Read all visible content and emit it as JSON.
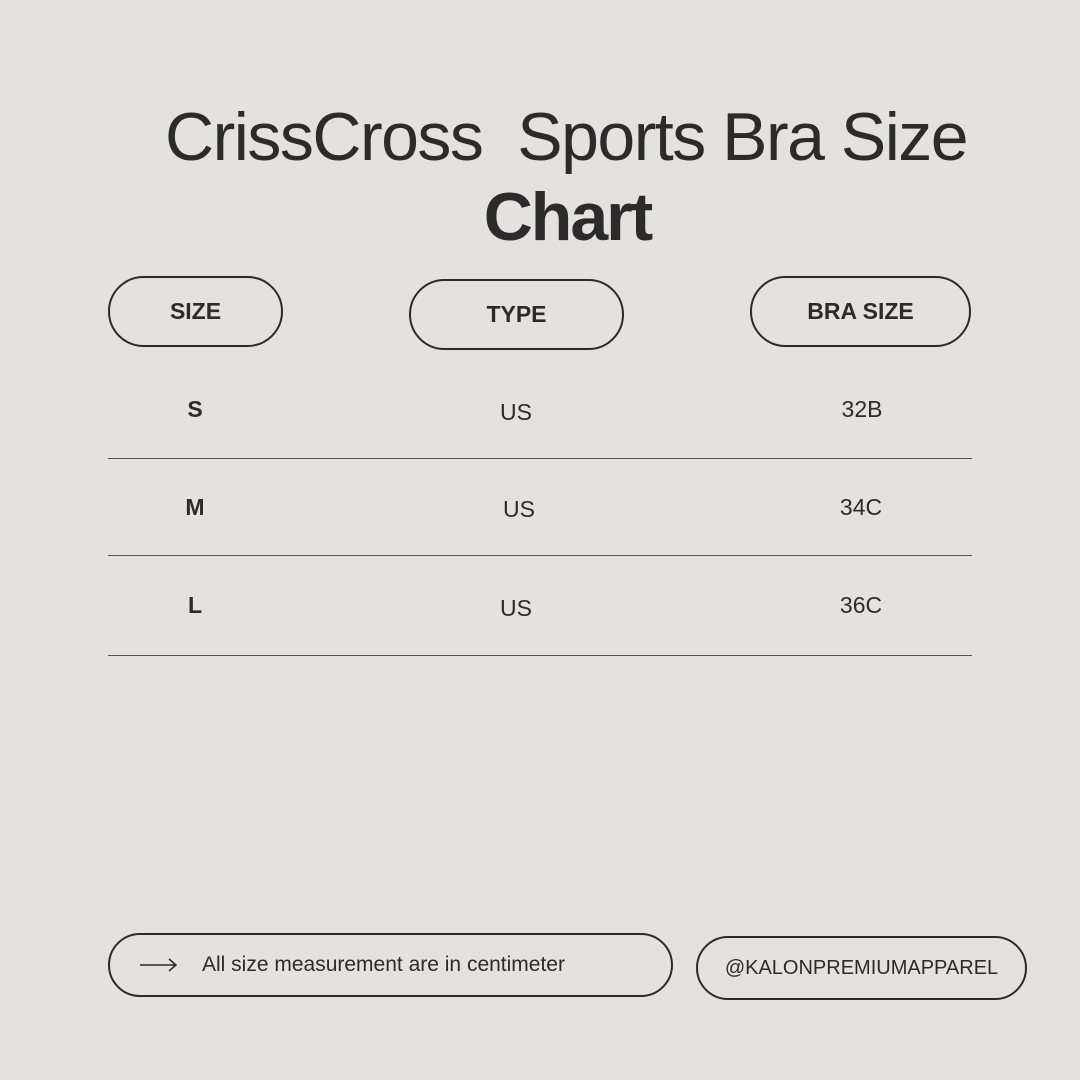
{
  "title": {
    "line1": "CrissCross  Sports Bra Size",
    "line2": "Chart"
  },
  "headers": [
    "SIZE",
    "TYPE",
    "BRA SIZE"
  ],
  "rows": [
    {
      "size": "S",
      "type": "US",
      "bra": "32B"
    },
    {
      "size": "M",
      "type": "US",
      "bra": "34C"
    },
    {
      "size": "L",
      "type": "US",
      "bra": "36C"
    }
  ],
  "footer": {
    "note": "All size measurement are in centimeter",
    "handle": "@KALONPREMIUMAPPAREL",
    "icon": "arrow-right-icon"
  }
}
